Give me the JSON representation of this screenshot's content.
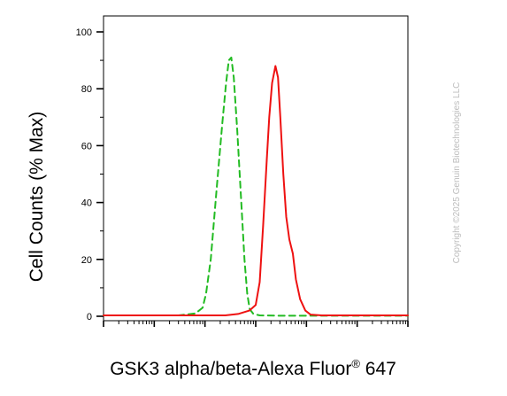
{
  "chart_data": {
    "type": "line",
    "title": "",
    "xlabel": "GSK3 alpha/beta-Alexa Fluor",
    "xlabel_superscript": "®",
    "xlabel_suffix": " 647",
    "ylabel": "Cell Counts (% Max)",
    "x_scale": "log",
    "xlim": [
      1,
      1000000
    ],
    "ylim": [
      0,
      100
    ],
    "yticks": [
      0,
      20,
      40,
      60,
      80,
      100
    ],
    "grid": false,
    "series": [
      {
        "style": "dashed",
        "color": "#22bb22",
        "x": [
          1,
          30,
          65,
          90,
          105,
          130,
          170,
          220,
          260,
          295,
          330,
          370,
          430,
          520,
          600,
          680,
          760,
          900,
          1200,
          3000,
          1000000
        ],
        "y": [
          0.3,
          0.3,
          1,
          3,
          8,
          20,
          45,
          68,
          82,
          90,
          91,
          84,
          66,
          40,
          20,
          8,
          2.5,
          0.8,
          0.3,
          0.2,
          0.2
        ]
      },
      {
        "style": "solid",
        "color": "#ee1111",
        "x": [
          1,
          250,
          450,
          750,
          1000,
          1200,
          1400,
          1650,
          1850,
          2100,
          2450,
          2750,
          3050,
          3500,
          4000,
          4600,
          5400,
          6200,
          7500,
          9500,
          12000,
          20000,
          1000000
        ],
        "y": [
          0.3,
          0.3,
          0.8,
          2,
          4,
          12,
          32,
          55,
          70,
          82,
          88,
          84,
          70,
          50,
          35,
          27,
          22,
          13,
          6,
          2,
          0.6,
          0.3,
          0.3
        ]
      }
    ]
  },
  "watermark": "Copyright ©2025 Genuin Biotechnologies LLC"
}
